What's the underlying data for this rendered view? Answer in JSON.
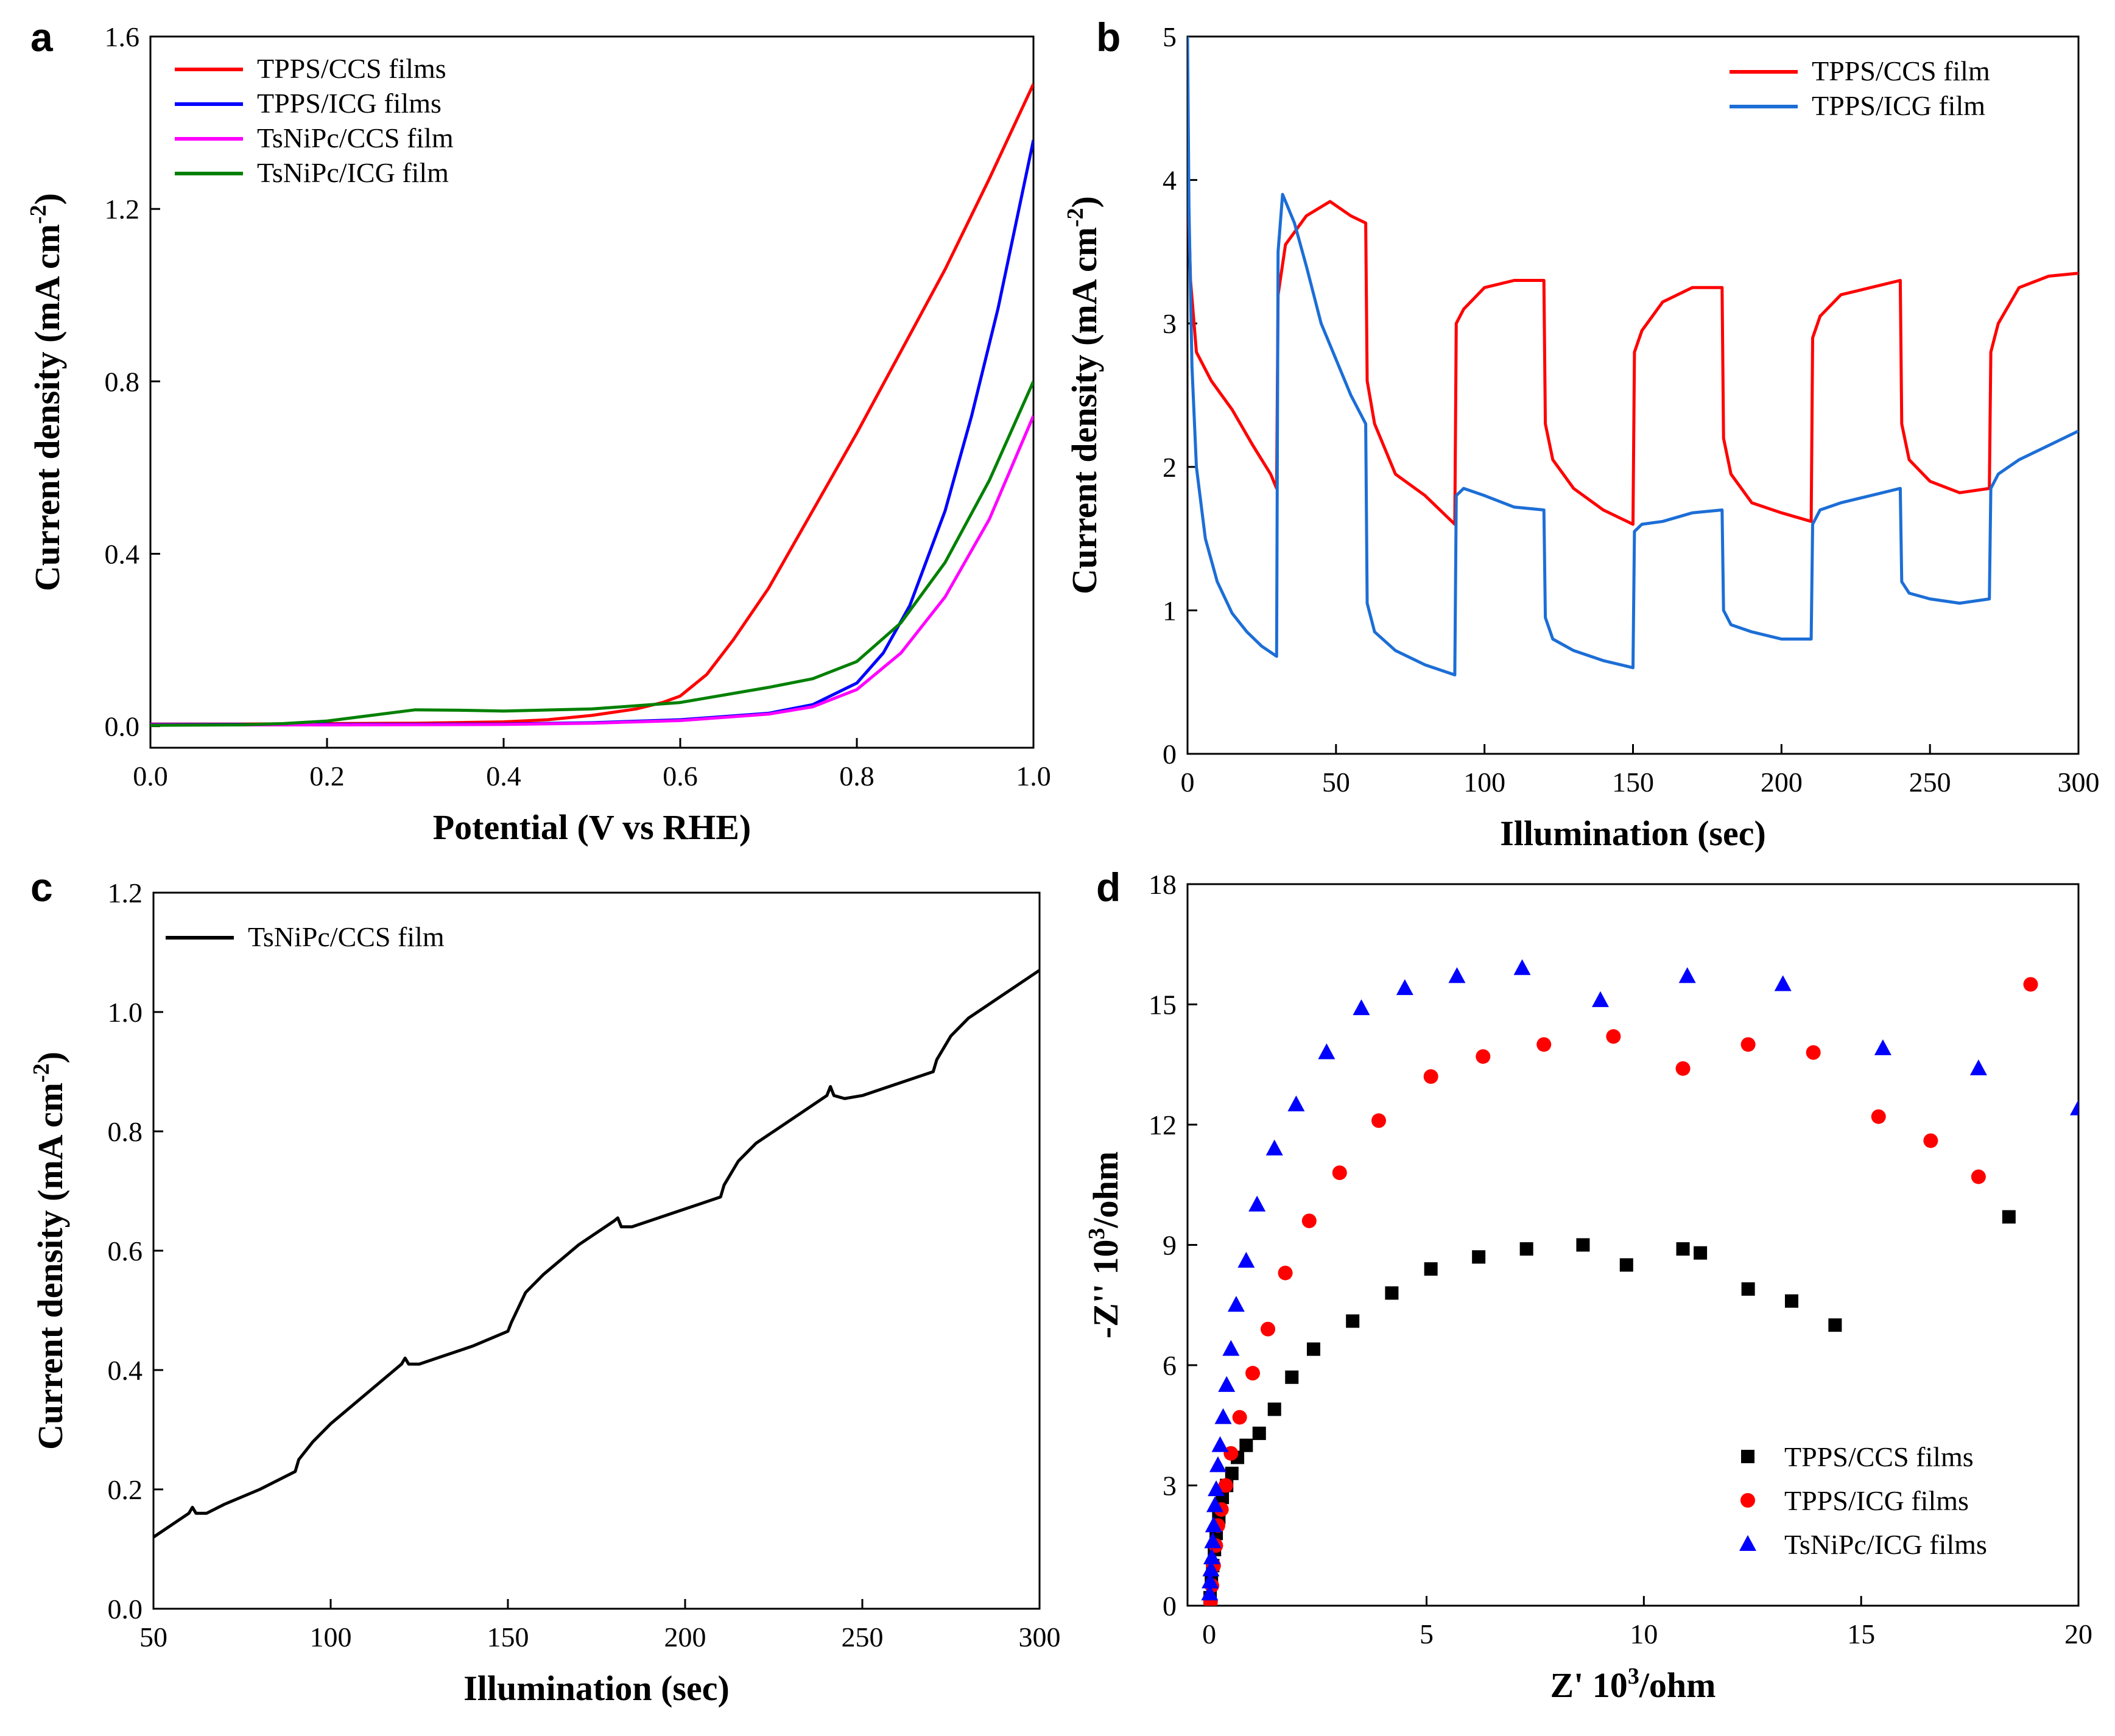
{
  "chart_data": [
    {
      "panel": "a",
      "type": "line",
      "xlabel": "Potential (V vs RHE)",
      "ylabel": "Current density (mA cm",
      "ylabel_sup": "-2",
      "ylabel_close": ")",
      "xlim": [
        0,
        1.0
      ],
      "ylim": [
        -0.05,
        1.6
      ],
      "xticks": [
        "0.0",
        "0.2",
        "0.4",
        "0.6",
        "0.8",
        "1.0"
      ],
      "xtick_values": [
        0,
        0.2,
        0.4,
        0.6,
        0.8,
        1.0
      ],
      "yticks": [
        "0.0",
        "0.4",
        "0.8",
        "1.2",
        "1.6"
      ],
      "ytick_values": [
        0,
        0.4,
        0.8,
        1.2,
        1.6
      ],
      "series": [
        {
          "name": "TPPS/CCS films",
          "color": "#ff0000",
          "x": [
            0,
            0.1,
            0.2,
            0.3,
            0.4,
            0.45,
            0.5,
            0.55,
            0.58,
            0.6,
            0.63,
            0.66,
            0.7,
            0.75,
            0.8,
            0.85,
            0.9,
            0.95,
            1.0
          ],
          "y": [
            0.005,
            0.005,
            0.006,
            0.007,
            0.01,
            0.015,
            0.025,
            0.04,
            0.055,
            0.07,
            0.12,
            0.2,
            0.32,
            0.5,
            0.68,
            0.87,
            1.06,
            1.27,
            1.49
          ]
        },
        {
          "name": "TPPS/ICG films",
          "color": "#0000ff",
          "x": [
            0,
            0.2,
            0.4,
            0.5,
            0.6,
            0.7,
            0.75,
            0.8,
            0.83,
            0.86,
            0.9,
            0.93,
            0.96,
            1.0
          ],
          "y": [
            0.004,
            0.004,
            0.005,
            0.008,
            0.015,
            0.03,
            0.05,
            0.1,
            0.17,
            0.28,
            0.5,
            0.72,
            0.97,
            1.36
          ]
        },
        {
          "name": "TsNiPc/CCS film",
          "color": "#ff00ff",
          "x": [
            0,
            0.2,
            0.4,
            0.5,
            0.6,
            0.7,
            0.75,
            0.8,
            0.85,
            0.9,
            0.95,
            1.0
          ],
          "y": [
            0.003,
            0.003,
            0.004,
            0.007,
            0.013,
            0.028,
            0.045,
            0.085,
            0.17,
            0.3,
            0.48,
            0.72
          ]
        },
        {
          "name": "TsNiPc/ICG film",
          "color": "#008000",
          "x": [
            0,
            0.1,
            0.15,
            0.2,
            0.25,
            0.3,
            0.35,
            0.4,
            0.5,
            0.6,
            0.7,
            0.75,
            0.8,
            0.85,
            0.9,
            0.95,
            1.0
          ],
          "y": [
            0.002,
            0.003,
            0.006,
            0.012,
            0.025,
            0.038,
            0.037,
            0.035,
            0.04,
            0.055,
            0.09,
            0.11,
            0.15,
            0.24,
            0.38,
            0.57,
            0.8
          ]
        }
      ]
    },
    {
      "panel": "b",
      "type": "line",
      "xlabel": "Illumination (sec)",
      "ylabel": "Current density (mA cm",
      "ylabel_sup": "-2",
      "ylabel_close": ")",
      "xlim": [
        0,
        300
      ],
      "ylim": [
        0,
        5
      ],
      "xticks": [
        "0",
        "50",
        "100",
        "150",
        "200",
        "250",
        "300"
      ],
      "xtick_values": [
        0,
        50,
        100,
        150,
        200,
        250,
        300
      ],
      "yticks": [
        "0",
        "1",
        "2",
        "3",
        "4",
        "5"
      ],
      "ytick_values": [
        0,
        1,
        2,
        3,
        4,
        5
      ],
      "series": [
        {
          "name": "TPPS/CCS film",
          "color": "#ff0000",
          "x": [
            0,
            1,
            3,
            8,
            15,
            22,
            28,
            30,
            30.5,
            33,
            40,
            48,
            55,
            60,
            60.5,
            63,
            70,
            80,
            90,
            90.5,
            93,
            100,
            110,
            120,
            120.5,
            123,
            130,
            140,
            150,
            150.5,
            153,
            160,
            170,
            180,
            180.5,
            183,
            190,
            200,
            210,
            210.5,
            213,
            220,
            230,
            240,
            240.5,
            243,
            250,
            260,
            270,
            270.5,
            273,
            280,
            290,
            300
          ],
          "y": [
            4.1,
            3.3,
            2.8,
            2.6,
            2.4,
            2.15,
            1.95,
            1.85,
            3.2,
            3.55,
            3.75,
            3.85,
            3.75,
            3.7,
            2.6,
            2.3,
            1.95,
            1.8,
            1.6,
            3.0,
            3.1,
            3.25,
            3.3,
            3.3,
            2.3,
            2.05,
            1.85,
            1.7,
            1.6,
            2.8,
            2.95,
            3.15,
            3.25,
            3.25,
            2.2,
            1.95,
            1.75,
            1.68,
            1.62,
            2.9,
            3.05,
            3.2,
            3.25,
            3.3,
            2.3,
            2.05,
            1.9,
            1.82,
            1.85,
            2.8,
            3.0,
            3.25,
            3.33,
            3.35
          ]
        },
        {
          "name": "TPPS/ICG film",
          "color": "#1c6ed6",
          "x": [
            0,
            0.5,
            1.5,
            3,
            6,
            10,
            15,
            20,
            25,
            30,
            30.5,
            32,
            36,
            40,
            45,
            50,
            55,
            60,
            60.5,
            63,
            70,
            80,
            90,
            90.5,
            93,
            100,
            110,
            120,
            120.5,
            123,
            130,
            140,
            150,
            150.5,
            153,
            160,
            170,
            180,
            180.5,
            183,
            190,
            200,
            210,
            210.5,
            213,
            220,
            230,
            240,
            240.5,
            243,
            250,
            260,
            270,
            270.5,
            273,
            280,
            290,
            300
          ],
          "y": [
            5.0,
            3.8,
            2.7,
            2.0,
            1.5,
            1.2,
            0.98,
            0.85,
            0.75,
            0.68,
            3.5,
            3.9,
            3.7,
            3.4,
            3.0,
            2.75,
            2.5,
            2.3,
            1.05,
            0.85,
            0.72,
            0.62,
            0.55,
            1.8,
            1.85,
            1.8,
            1.72,
            1.7,
            0.95,
            0.8,
            0.72,
            0.65,
            0.6,
            1.55,
            1.6,
            1.62,
            1.68,
            1.7,
            1.0,
            0.9,
            0.85,
            0.8,
            0.8,
            1.6,
            1.7,
            1.75,
            1.8,
            1.85,
            1.2,
            1.12,
            1.08,
            1.05,
            1.08,
            1.85,
            1.95,
            2.05,
            2.15,
            2.25
          ]
        }
      ]
    },
    {
      "panel": "c",
      "type": "line",
      "xlabel": "Illumination (sec)",
      "ylabel": "Current density (mA cm",
      "ylabel_sup": "-2",
      "ylabel_close": ")",
      "xlim": [
        50,
        300
      ],
      "ylim": [
        0,
        1.2
      ],
      "xticks": [
        "50",
        "100",
        "150",
        "200",
        "250",
        "300"
      ],
      "xtick_values": [
        50,
        100,
        150,
        200,
        250,
        300
      ],
      "yticks": [
        "0.0",
        "0.2",
        "0.4",
        "0.6",
        "0.8",
        "1.0",
        "1.2"
      ],
      "ytick_values": [
        0,
        0.2,
        0.4,
        0.6,
        0.8,
        1.0,
        1.2
      ],
      "series": [
        {
          "name": "TsNiPc/CCS film",
          "color": "#000000",
          "x": [
            50,
            55,
            60,
            61,
            62,
            65,
            70,
            80,
            90,
            91,
            95,
            100,
            110,
            120,
            121,
            122,
            125,
            130,
            140,
            150,
            151,
            155,
            160,
            170,
            180,
            181,
            182,
            185,
            190,
            200,
            210,
            211,
            215,
            220,
            230,
            240,
            241,
            242,
            245,
            250,
            260,
            270,
            271,
            275,
            280,
            290,
            300
          ],
          "y": [
            0.12,
            0.14,
            0.16,
            0.17,
            0.16,
            0.16,
            0.175,
            0.2,
            0.23,
            0.25,
            0.28,
            0.31,
            0.36,
            0.41,
            0.42,
            0.41,
            0.41,
            0.42,
            0.44,
            0.465,
            0.48,
            0.53,
            0.56,
            0.61,
            0.65,
            0.655,
            0.64,
            0.64,
            0.65,
            0.67,
            0.69,
            0.71,
            0.75,
            0.78,
            0.82,
            0.86,
            0.875,
            0.86,
            0.855,
            0.86,
            0.88,
            0.9,
            0.92,
            0.96,
            0.99,
            1.03,
            1.07
          ]
        }
      ]
    },
    {
      "panel": "d",
      "type": "scatter",
      "xlabel": "Z' 10",
      "xlabel_sup": "3",
      "xlabel_close": "/ohm",
      "ylabel": "-Z'' 10",
      "ylabel_sup": "3",
      "ylabel_close": "/ohm",
      "xlim": [
        -0.5,
        20
      ],
      "ylim": [
        0,
        18
      ],
      "xticks": [
        "0",
        "5",
        "10",
        "15",
        "20"
      ],
      "xtick_values": [
        0,
        5,
        10,
        15,
        20
      ],
      "yticks": [
        "0",
        "3",
        "6",
        "9",
        "12",
        "15",
        "18"
      ],
      "ytick_values": [
        0,
        3,
        6,
        9,
        12,
        15,
        18
      ],
      "series": [
        {
          "name": "TPPS/CCS films",
          "color": "#000000",
          "marker": "square",
          "x": [
            0.02,
            0.05,
            0.08,
            0.12,
            0.16,
            0.22,
            0.3,
            0.4,
            0.52,
            0.65,
            0.85,
            1.15,
            1.5,
            1.9,
            2.4,
            3.3,
            4.2,
            5.1,
            6.2,
            7.3,
            8.6,
            9.6,
            10.9,
            11.3,
            12.4,
            13.4,
            14.4,
            18.4
          ],
          "y": [
            0.2,
            0.6,
            1.0,
            1.4,
            1.8,
            2.2,
            2.7,
            3.0,
            3.3,
            3.7,
            4.0,
            4.3,
            4.9,
            5.7,
            6.4,
            7.1,
            7.8,
            8.4,
            8.7,
            8.9,
            9.0,
            8.5,
            8.9,
            8.8,
            7.9,
            7.6,
            7.0,
            9.7
          ]
        },
        {
          "name": "TPPS/ICG films",
          "color": "#ff0000",
          "marker": "circle",
          "x": [
            0.03,
            0.06,
            0.1,
            0.15,
            0.2,
            0.28,
            0.38,
            0.5,
            0.7,
            1.0,
            1.35,
            1.75,
            2.3,
            3.0,
            3.9,
            5.1,
            6.3,
            7.7,
            9.3,
            10.9,
            12.4,
            13.9,
            15.4,
            16.6,
            17.7,
            18.9
          ],
          "y": [
            0.1,
            0.5,
            1.0,
            1.5,
            2.0,
            2.4,
            3.0,
            3.8,
            4.7,
            5.8,
            6.9,
            8.3,
            9.6,
            10.8,
            12.1,
            13.2,
            13.7,
            14.0,
            14.2,
            13.4,
            14.0,
            13.8,
            12.2,
            11.6,
            10.7,
            15.5
          ]
        },
        {
          "name": "TsNiPc/ICG films",
          "color": "#0000ff",
          "marker": "triangle",
          "x": [
            0.01,
            0.02,
            0.04,
            0.06,
            0.08,
            0.1,
            0.13,
            0.16,
            0.2,
            0.25,
            0.32,
            0.4,
            0.5,
            0.62,
            0.85,
            1.1,
            1.5,
            2.0,
            2.7,
            3.5,
            4.5,
            5.7,
            7.2,
            9.0,
            11.0,
            13.2,
            15.5,
            17.7,
            20.0
          ],
          "y": [
            0.3,
            0.6,
            0.9,
            1.2,
            1.6,
            2.0,
            2.5,
            2.9,
            3.5,
            4.0,
            4.7,
            5.5,
            6.4,
            7.5,
            8.6,
            10.0,
            11.4,
            12.5,
            13.8,
            14.9,
            15.4,
            15.7,
            15.9,
            15.1,
            15.7,
            15.5,
            13.9,
            13.4,
            12.4
          ]
        }
      ]
    }
  ]
}
